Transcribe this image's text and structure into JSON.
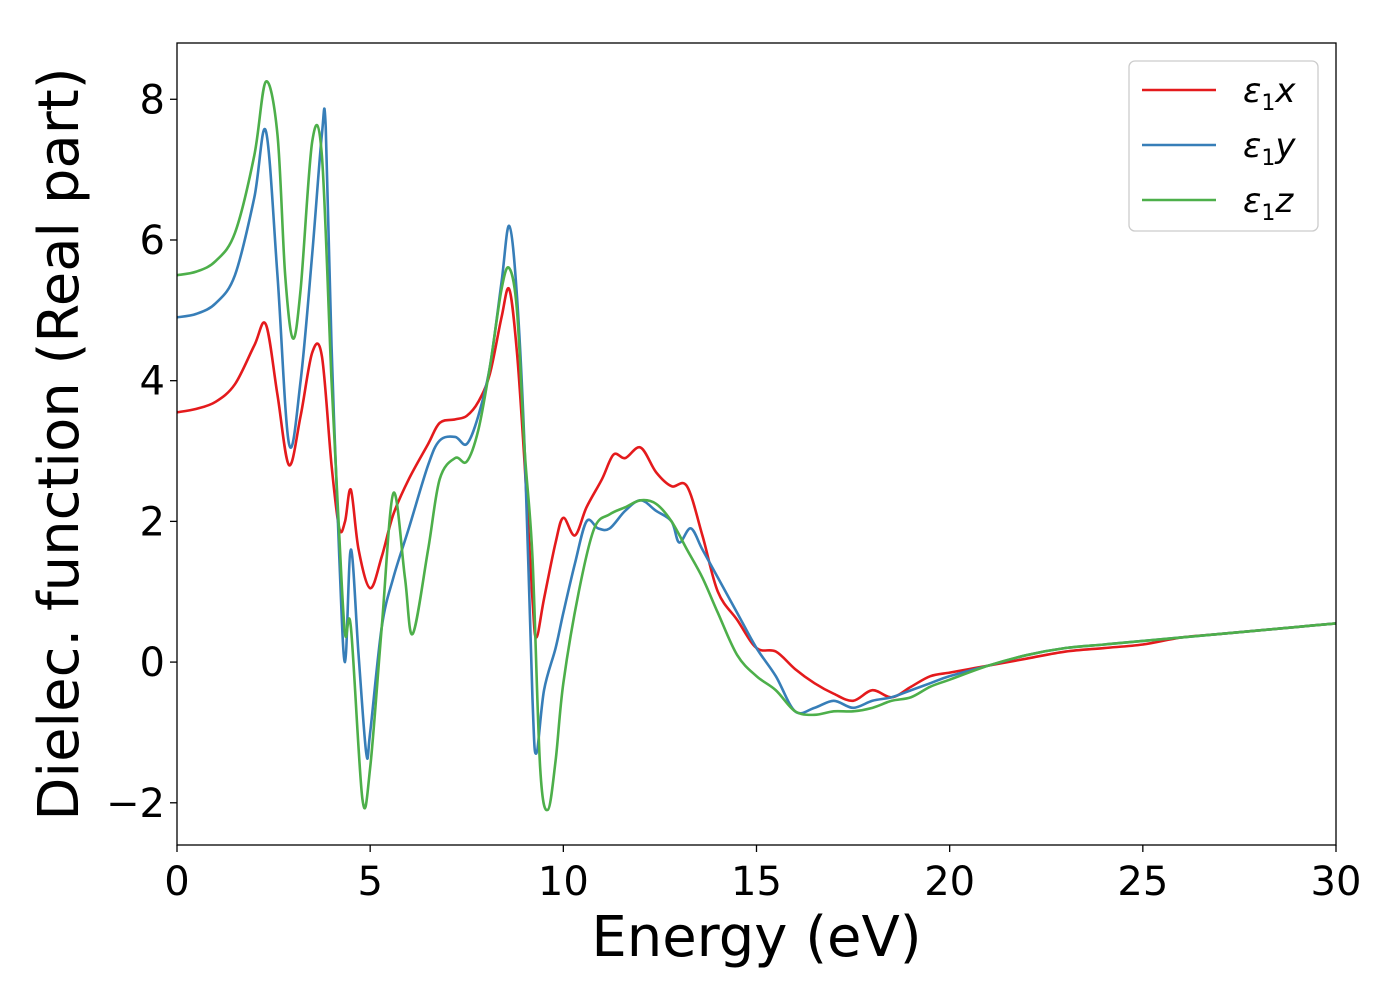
{
  "chart_data": {
    "type": "line",
    "xlabel": "Energy (eV)",
    "ylabel": "Dielec. function (Real part)",
    "xlim": [
      0,
      30
    ],
    "ylim": [
      -2.6,
      8.8
    ],
    "xticks": [
      0,
      5,
      10,
      15,
      20,
      25,
      30
    ],
    "xtick_labels": [
      "0",
      "5",
      "10",
      "15",
      "20",
      "25",
      "30"
    ],
    "yticks": [
      -2,
      0,
      2,
      4,
      6,
      8
    ],
    "ytick_labels": [
      "−2",
      "0",
      "2",
      "4",
      "6",
      "8"
    ],
    "grid": false,
    "legend_position": "top-right",
    "series": [
      {
        "name": "ε1x",
        "legend_base": "ε",
        "legend_sub": "1",
        "legend_var": "x",
        "color": "#e41a1c",
        "x": [
          0,
          0.5,
          1.0,
          1.5,
          2.0,
          2.3,
          2.6,
          2.9,
          3.2,
          3.5,
          3.75,
          4.0,
          4.2,
          4.35,
          4.5,
          4.7,
          5.0,
          5.3,
          5.6,
          6.0,
          6.5,
          6.8,
          7.2,
          7.5,
          7.8,
          8.1,
          8.4,
          8.6,
          8.8,
          9.0,
          9.2,
          9.3,
          9.5,
          9.8,
          10.0,
          10.3,
          10.6,
          11.0,
          11.3,
          11.6,
          12.0,
          12.4,
          12.8,
          13.2,
          13.6,
          14.0,
          14.5,
          15.0,
          15.5,
          16.0,
          16.5,
          17.0,
          17.5,
          18.0,
          18.5,
          19.0,
          19.5,
          20.0,
          20.5,
          21.0,
          22.0,
          23.0,
          24.0,
          25.0,
          26.0,
          27.0,
          28.0,
          29.0,
          30.0
        ],
        "y": [
          3.55,
          3.6,
          3.7,
          3.95,
          4.5,
          4.8,
          3.8,
          2.8,
          3.5,
          4.4,
          4.35,
          2.8,
          1.9,
          2.0,
          2.45,
          1.6,
          1.05,
          1.5,
          2.1,
          2.6,
          3.1,
          3.4,
          3.45,
          3.5,
          3.7,
          4.1,
          4.9,
          5.3,
          4.4,
          2.8,
          0.9,
          0.35,
          0.9,
          1.7,
          2.05,
          1.8,
          2.2,
          2.6,
          2.95,
          2.9,
          3.05,
          2.7,
          2.5,
          2.5,
          1.8,
          1.0,
          0.6,
          0.2,
          0.15,
          -0.1,
          -0.3,
          -0.45,
          -0.55,
          -0.4,
          -0.5,
          -0.35,
          -0.2,
          -0.15,
          -0.1,
          -0.05,
          0.05,
          0.15,
          0.2,
          0.25,
          0.35,
          0.4,
          0.45,
          0.5,
          0.55
        ]
      },
      {
        "name": "ε1y",
        "legend_base": "ε",
        "legend_sub": "1",
        "legend_var": "y",
        "color": "#377eb8",
        "x": [
          0,
          0.5,
          1.0,
          1.5,
          2.0,
          2.3,
          2.6,
          2.9,
          3.2,
          3.5,
          3.75,
          3.85,
          4.0,
          4.2,
          4.35,
          4.5,
          4.7,
          4.9,
          5.0,
          5.3,
          5.6,
          6.0,
          6.5,
          6.8,
          7.2,
          7.5,
          7.8,
          8.1,
          8.4,
          8.6,
          8.8,
          9.0,
          9.2,
          9.3,
          9.5,
          9.8,
          10.0,
          10.3,
          10.6,
          10.9,
          11.2,
          11.6,
          12.0,
          12.4,
          12.8,
          13.0,
          13.3,
          13.6,
          14.0,
          14.5,
          15.0,
          15.5,
          16.0,
          16.5,
          17.0,
          17.5,
          18.0,
          18.5,
          19.0,
          19.5,
          20.0,
          21.0,
          22.0,
          23.0,
          24.0,
          25.0,
          26.0,
          27.0,
          28.0,
          29.0,
          30.0
        ],
        "y": [
          4.9,
          4.95,
          5.1,
          5.5,
          6.6,
          7.55,
          5.5,
          3.1,
          4.0,
          5.8,
          7.5,
          7.6,
          4.5,
          1.5,
          0.0,
          1.6,
          0.1,
          -1.3,
          -1.0,
          0.5,
          1.2,
          1.9,
          2.8,
          3.15,
          3.2,
          3.1,
          3.5,
          4.2,
          5.4,
          6.2,
          5.2,
          3.0,
          -0.5,
          -1.3,
          -0.4,
          0.2,
          0.7,
          1.4,
          2.0,
          1.9,
          1.9,
          2.15,
          2.3,
          2.15,
          2.0,
          1.7,
          1.9,
          1.6,
          1.2,
          0.7,
          0.2,
          -0.2,
          -0.7,
          -0.65,
          -0.55,
          -0.65,
          -0.55,
          -0.5,
          -0.4,
          -0.3,
          -0.2,
          -0.05,
          0.1,
          0.2,
          0.25,
          0.3,
          0.35,
          0.4,
          0.45,
          0.5,
          0.55
        ]
      },
      {
        "name": "ε1z",
        "legend_base": "ε",
        "legend_sub": "1",
        "legend_var": "z",
        "color": "#4daf4a",
        "x": [
          0,
          0.5,
          1.0,
          1.5,
          2.0,
          2.3,
          2.6,
          2.8,
          3.0,
          3.2,
          3.5,
          3.75,
          4.0,
          4.2,
          4.35,
          4.5,
          4.8,
          5.0,
          5.3,
          5.6,
          5.9,
          6.1,
          6.5,
          6.8,
          7.2,
          7.5,
          7.8,
          8.1,
          8.4,
          8.6,
          8.8,
          9.0,
          9.2,
          9.4,
          9.6,
          9.8,
          10.0,
          10.4,
          10.8,
          11.2,
          11.6,
          12.0,
          12.4,
          12.8,
          13.2,
          13.6,
          14.0,
          14.5,
          15.0,
          15.5,
          16.0,
          16.5,
          17.0,
          17.5,
          18.0,
          18.5,
          19.0,
          19.5,
          20.0,
          21.0,
          22.0,
          23.0,
          24.0,
          25.0,
          26.0,
          27.0,
          28.0,
          29.0,
          30.0
        ],
        "y": [
          5.5,
          5.55,
          5.7,
          6.1,
          7.2,
          8.25,
          7.5,
          5.5,
          4.6,
          5.3,
          7.4,
          7.2,
          4.0,
          1.8,
          0.4,
          0.5,
          -1.95,
          -1.5,
          0.5,
          2.4,
          1.2,
          0.4,
          1.6,
          2.6,
          2.9,
          2.85,
          3.3,
          4.2,
          5.3,
          5.6,
          5.0,
          3.0,
          1.5,
          -1.5,
          -2.1,
          -1.4,
          -0.3,
          1.0,
          1.9,
          2.1,
          2.2,
          2.3,
          2.25,
          2.0,
          1.6,
          1.2,
          0.7,
          0.1,
          -0.2,
          -0.4,
          -0.7,
          -0.75,
          -0.7,
          -0.7,
          -0.65,
          -0.55,
          -0.5,
          -0.35,
          -0.25,
          -0.05,
          0.1,
          0.2,
          0.25,
          0.3,
          0.35,
          0.4,
          0.45,
          0.5,
          0.55
        ]
      }
    ]
  }
}
